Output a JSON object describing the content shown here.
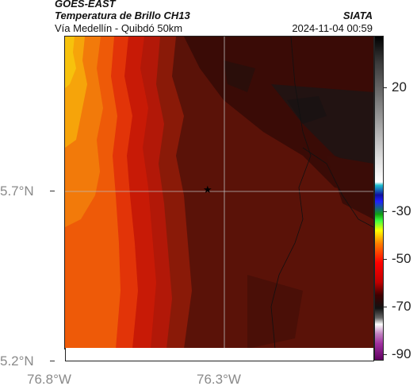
{
  "header": {
    "satellite": "GOES-EAST",
    "product": "Temperatura de Brillo CH13",
    "region": "Vía Medellín - Quibdó 50km",
    "agency": "SIATA",
    "timestamp": "2024-11-04 00:59"
  },
  "map": {
    "lat_labels": [
      "5.7°N",
      "5.2°N"
    ],
    "lon_labels": [
      "76.8°W",
      "76.3°W"
    ],
    "marker_icon": "star-icon",
    "colors": {
      "cold_cloud": "#1c1414",
      "dark_red": "#5a1208",
      "red": "#c81a06",
      "orange": "#ee5a08",
      "yellow_orange": "#f6a40a"
    }
  },
  "colorbar": {
    "ticks": [
      "20",
      "-30",
      "-50",
      "-70",
      "-90"
    ]
  }
}
